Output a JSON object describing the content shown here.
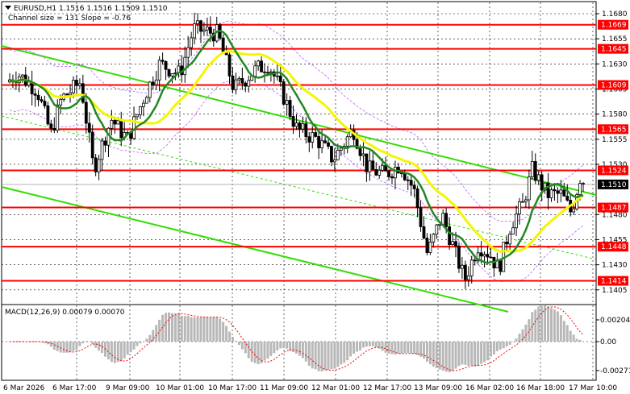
{
  "header": {
    "symbol_line": "EURUSD,H1  1.1516 1.1516 1.1509 1.1510",
    "channel_line": "Channel size = 131 Slope = -0.76",
    "arrow_icon": "triangle-down-icon"
  },
  "price_axis": {
    "ticks": [
      "1.1680",
      "1.1655",
      "1.1630",
      "1.1605",
      "1.1580",
      "1.1555",
      "1.1530",
      "1.1480",
      "1.1455",
      "1.1430",
      "1.1405"
    ],
    "tick_values": [
      1.168,
      1.1655,
      1.163,
      1.1605,
      1.158,
      1.1555,
      1.153,
      1.148,
      1.1455,
      1.143,
      1.1405
    ]
  },
  "levels": [
    {
      "label": "1.1669",
      "value": 1.1669
    },
    {
      "label": "1.1645",
      "value": 1.1645
    },
    {
      "label": "1.1609",
      "value": 1.1609
    },
    {
      "label": "1.1565",
      "value": 1.1565
    },
    {
      "label": "1.1524",
      "value": 1.1524
    },
    {
      "label": "1.1487",
      "value": 1.1487
    },
    {
      "label": "1.1448",
      "value": 1.1448
    },
    {
      "label": "1.1414",
      "value": 1.1414
    }
  ],
  "current_price": {
    "label": "1.1510",
    "value": 1.151
  },
  "macd": {
    "label": "MACD(12,26,9) 0.00079 0.00070",
    "ticks": [
      "0.00204",
      "0.00",
      "-0.00271"
    ],
    "tick_values": [
      0.00204,
      0.0,
      -0.00271
    ]
  },
  "time_axis": [
    "6 Mar 2026",
    "6 Mar 17:00",
    "9 Mar 09:00",
    "10 Mar 01:00",
    "10 Mar 17:00",
    "11 Mar 09:00",
    "12 Mar 01:00",
    "12 Mar 17:00",
    "13 Mar 09:00",
    "16 Mar 02:00",
    "16 Mar 18:00",
    "17 Mar 10:00"
  ],
  "colors": {
    "level_line": "#ff0000",
    "channel": "#33dd00",
    "ma_fast": "#228822",
    "ma_slow": "#f5f500",
    "envelope": "#c060ff",
    "candle": "#000000",
    "macd_hist": "#b8b8b8",
    "macd_signal": "#ff0000",
    "grid": "#000000"
  }
}
